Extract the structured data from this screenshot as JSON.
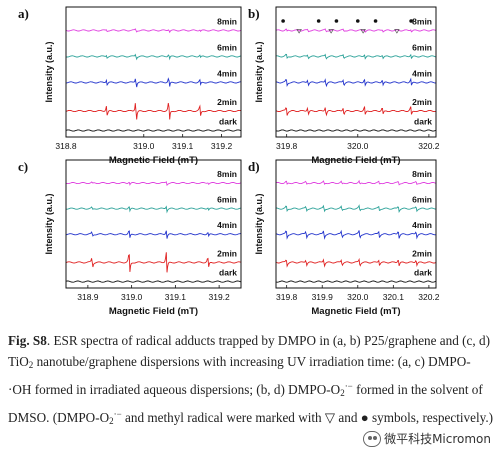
{
  "caption": {
    "label": "Fig. S8",
    "p1": ". ESR spectra of radical adducts trapped by DMPO in (a, b) P25/graphene and (c, d) TiO",
    "p1_sub": "2",
    "p2": " nanotube/graphene dispersions with increasing UV irradiation time: (a, c) DMPO-·OH formed in irradiated aqueous dispersions; (b, d) DMPO-O",
    "p2_sub": "2",
    "p2_sup": "·−",
    "p3": " formed in the solvent of DMSO. (DMPO-O",
    "p3_sub": "2",
    "p3_sup": "·−",
    "p4": " and methyl radical were marked with ▽ and ● symbols, respectively.)"
  },
  "watermark": {
    "text": "微平科技Micromon",
    "icon": "wechat-icon"
  },
  "colors": {
    "8min": "#e040e0",
    "6min": "#2aa198",
    "4min": "#2233cc",
    "2min": "#e02020",
    "dark": "#111111"
  },
  "chart_data": [
    {
      "panel": "a)",
      "type": "line",
      "xlabel": "Magnetic Field (mT)",
      "ylabel": "Intensity (a.u.)",
      "xlim": [
        318.8,
        319.25
      ],
      "xticks": [
        "318.8",
        "319.0",
        "319.1",
        "319.2"
      ],
      "xtick_values": [
        318.8,
        319.0,
        319.1,
        319.2
      ],
      "species": "DMPO-OH",
      "peaks": [
        318.905,
        318.98,
        319.065,
        319.145
      ],
      "series": [
        {
          "name": "8min",
          "amp": 0.15
        },
        {
          "name": "6min",
          "amp": 0.25
        },
        {
          "name": "4min",
          "amp": 0.5
        },
        {
          "name": "2min",
          "amp": 1.0
        },
        {
          "name": "dark",
          "amp": 0.0
        }
      ]
    },
    {
      "panel": "b)",
      "type": "line",
      "xlabel": "Magnetic Field (mT)",
      "ylabel": "Intensity (a.u.)",
      "xlim": [
        319.77,
        320.22
      ],
      "xticks": [
        "319.8",
        "320.0",
        "320.2"
      ],
      "xtick_values": [
        319.8,
        320.0,
        320.2
      ],
      "species": "DMPO-O2",
      "peaks": [
        319.8,
        319.86,
        319.91,
        319.96,
        320.02,
        320.07,
        320.15
      ],
      "methyl_markers": [
        319.79,
        319.89,
        319.94,
        320.0,
        320.05,
        320.15
      ],
      "superoxide_markers": [
        319.835,
        319.925,
        320.015,
        320.11
      ],
      "series": [
        {
          "name": "8min",
          "amp": 0.25
        },
        {
          "name": "6min",
          "amp": 0.45
        },
        {
          "name": "4min",
          "amp": 0.7
        },
        {
          "name": "2min",
          "amp": 0.9
        },
        {
          "name": "dark",
          "amp": 0.0
        }
      ]
    },
    {
      "panel": "c)",
      "type": "line",
      "xlabel": "Magnetic Field (mT)",
      "ylabel": "Intensity (a.u.)",
      "xlim": [
        318.85,
        319.25
      ],
      "xticks": [
        "318.9",
        "319.0",
        "319.1",
        "319.2"
      ],
      "xtick_values": [
        318.9,
        319.0,
        319.1,
        319.2
      ],
      "species": "DMPO-OH",
      "peaks": [
        318.91,
        318.995,
        319.08,
        319.175
      ],
      "series": [
        {
          "name": "8min",
          "amp": 0.15
        },
        {
          "name": "6min",
          "amp": 0.25
        },
        {
          "name": "4min",
          "amp": 0.4
        },
        {
          "name": "2min",
          "amp": 1.0
        },
        {
          "name": "dark",
          "amp": 0.0
        }
      ]
    },
    {
      "panel": "d)",
      "type": "line",
      "xlabel": "Magnetic Field (mT)",
      "ylabel": "Intensity (a.u.)",
      "xlim": [
        319.77,
        320.22
      ],
      "xticks": [
        "319.8",
        "319.9",
        "320.0",
        "320.1",
        "320.2"
      ],
      "xtick_values": [
        319.8,
        319.9,
        320.0,
        320.1,
        320.2
      ],
      "species": "DMPO-O2",
      "peaks": [
        319.8,
        319.855,
        319.905,
        319.955,
        320.005,
        320.06,
        320.115,
        320.165
      ],
      "series": [
        {
          "name": "8min",
          "amp": 0.35
        },
        {
          "name": "6min",
          "amp": 0.55
        },
        {
          "name": "4min",
          "amp": 0.8
        },
        {
          "name": "2min",
          "amp": 0.7
        },
        {
          "name": "dark",
          "amp": 0.0
        }
      ]
    }
  ]
}
